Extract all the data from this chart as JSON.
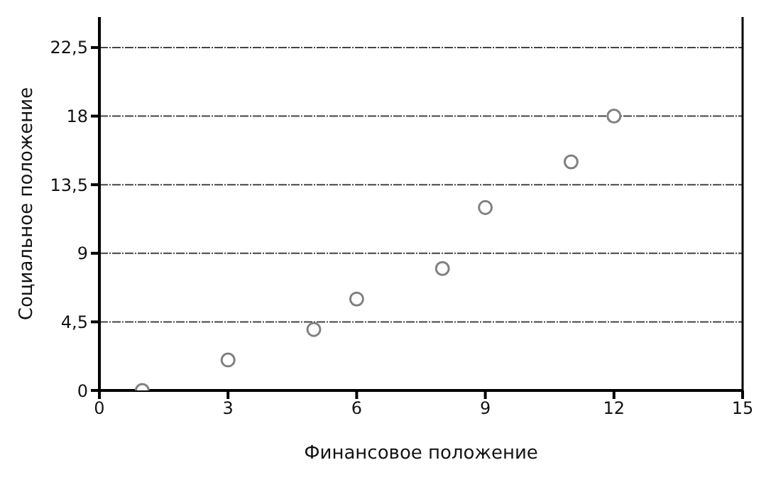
{
  "chart_data": {
    "type": "scatter",
    "xlabel": "Финансовое положение",
    "ylabel": "Социальное положение",
    "x": [
      1,
      3,
      5,
      6,
      8,
      9,
      11,
      12
    ],
    "series": [
      {
        "color": "#808080",
        "values": [
          0,
          2,
          4,
          6,
          8,
          12,
          15,
          18
        ]
      }
    ],
    "xlim": [
      0,
      15
    ],
    "xticks": [
      0,
      3,
      6,
      9,
      12,
      15
    ],
    "ylim": [
      0,
      24.5
    ],
    "yticks": [
      0,
      {
        "value": 4.5,
        "label": "4,5"
      },
      9,
      {
        "value": 13.5,
        "label": "13,5"
      },
      18,
      {
        "value": 22.5,
        "label": "22,5"
      }
    ],
    "grid": "y",
    "marker": "circle",
    "legend": false
  }
}
